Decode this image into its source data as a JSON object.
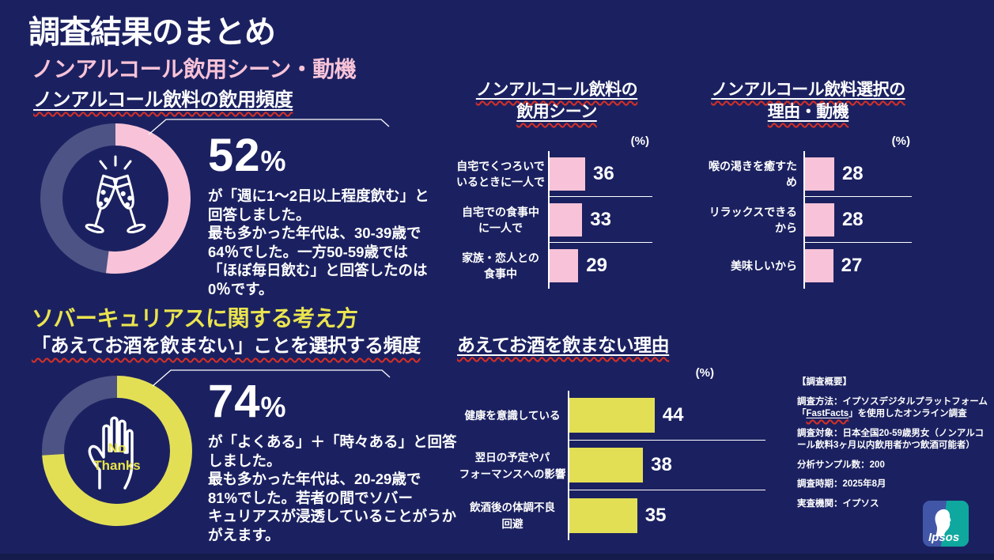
{
  "colors": {
    "background": "#1b2160",
    "pink": "#f8c3d8",
    "yellow": "#e3df55",
    "slate_remainder": "#4d5384",
    "white": "#ffffff",
    "spellcheck_red": "#d93025",
    "ipsos_blue": "#4156a6",
    "ipsos_teal": "#0fa89e",
    "footer_strip": "#151b4a"
  },
  "header": {
    "title": "調査結果のまとめ"
  },
  "sections": {
    "nonalc": {
      "title": "ノンアルコール飲用シーン・動機"
    },
    "sober": {
      "title": "ソバーキュリアスに関する考え方"
    }
  },
  "chart_data": [
    {
      "id": "frequency_donut",
      "type": "donut",
      "title": "ノンアルコール飲料の飲用頻度",
      "percent": 52,
      "segment_color": "#f8c3d8",
      "remainder_color": "#4d5384",
      "icon": "champagne-glasses",
      "callout_value": "52",
      "callout_unit": "%",
      "callout_text": "が「週に1～2日以上程度飲む」と\n回答しました。\n最も多かった年代は、30-39歳で\n64％でした。一方50-59歳では\n「ほぼ毎日飲む」と回答したのは\n0％です。"
    },
    {
      "id": "sober_donut",
      "type": "donut",
      "title": "「あえてお酒を飲まない」ことを選択する頻度",
      "percent": 74,
      "segment_color": "#e3df55",
      "remainder_color": "#4d5384",
      "icon": "stop-hand",
      "icon_text": "No\nThanks",
      "callout_value": "74",
      "callout_unit": "%",
      "callout_text": "が「よくある」＋「時々ある」と回答\nしました。\n最も多かった年代は、20-29歳で\n81%でした。若者の間でソバー\nキュリアスが浸透していることがうか\nがえます。"
    },
    {
      "id": "scene_bar",
      "type": "bar",
      "orientation": "horizontal",
      "title": "ノンアルコール飲料の飲用シーン",
      "title_lines": [
        "ノンアルコール飲料の",
        "飲用シーン"
      ],
      "unit_label": "(%)",
      "categories": [
        "自宅でくつろいで\nいるときに一人で",
        "自宅での食事中\nに一人で",
        "家族・恋人との\n食事中"
      ],
      "values": [
        36,
        33,
        29
      ],
      "bar_color": "#f8c3d8",
      "xlim": [
        0,
        100
      ],
      "legend": "none",
      "grid": "off"
    },
    {
      "id": "reason_bar",
      "type": "bar",
      "orientation": "horizontal",
      "title": "ノンアルコール飲料選択の理由・動機",
      "title_lines": [
        "ノンアルコール飲料選択の",
        "理由・動機"
      ],
      "unit_label": "(%)",
      "categories": [
        "喉の渇きを癒すため",
        "リラックスできるから",
        "美味しいから"
      ],
      "values": [
        28,
        28,
        27
      ],
      "bar_color": "#f8c3d8",
      "xlim": [
        0,
        100
      ],
      "legend": "none",
      "grid": "off"
    },
    {
      "id": "no_alcohol_bar",
      "type": "bar",
      "orientation": "horizontal",
      "title": "あえてお酒を飲まない理由",
      "unit_label": "(%)",
      "categories": [
        "健康を意識している",
        "翌日の予定やパ\nフォーマンスへの影響",
        "飲酒後の体調不良\n回避"
      ],
      "values": [
        44,
        38,
        35
      ],
      "bar_color": "#e3df55",
      "xlim": [
        0,
        100
      ],
      "legend": "none",
      "grid": "off"
    }
  ],
  "survey": {
    "heading": "【調査概要】",
    "method_prefix": "調査方法：イプソスデジタルプラットフォーム「",
    "method_link": "FastFacts",
    "method_suffix": "」を使用したオンライン調査",
    "audience": "調査対象：日本全国20-59歳男女（ノンアルコール飲料3ヶ月以内飲用者かつ飲酒可能者）",
    "sample": "分析サンプル数：200",
    "period": "調査時期：2025年8月",
    "agency": "実査機関：イプソス"
  },
  "logo": {
    "brand": "Ipsos"
  }
}
